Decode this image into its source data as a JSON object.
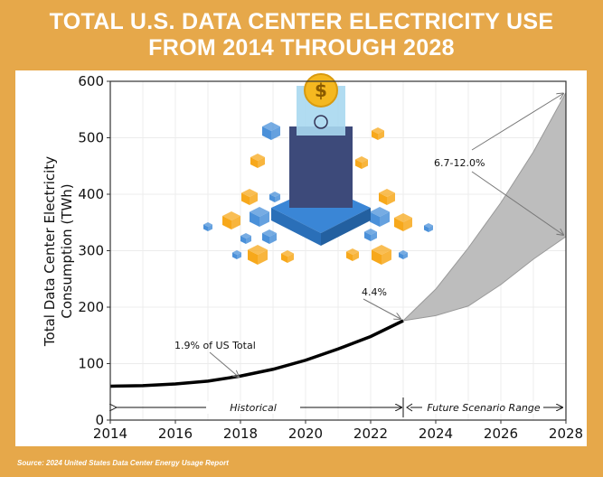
{
  "title_line1": "TOTAL U.S. DATA CENTER ELECTRICITY USE",
  "title_line2": "FROM 2014 THROUGH 2028",
  "source": "Source: 2024 United States Data Center Energy Usage Report",
  "colors": {
    "background": "#e6a84a",
    "line": "#000000",
    "range_fill": "#bdbdbd",
    "range_edge": "#999999"
  },
  "chart_data": {
    "type": "line",
    "title": "Total U.S. Data Center Electricity Use from 2014 through 2028",
    "xlabel": "",
    "ylabel": "Total Data Center Electricity Consumption (TWh)",
    "ylabel_line1": "Total Data Center Electricity",
    "ylabel_line2": "Consumption (TWh)",
    "xlim": [
      2014,
      2028
    ],
    "ylim": [
      0,
      600
    ],
    "xticks": [
      "2014",
      "2016",
      "2018",
      "2020",
      "2022",
      "2024",
      "2026",
      "2028"
    ],
    "yticks": [
      "0",
      "100",
      "200",
      "300",
      "400",
      "500",
      "600"
    ],
    "grid": true,
    "series": [
      {
        "name": "Historical",
        "x": [
          2014,
          2015,
          2016,
          2017,
          2018,
          2019,
          2020,
          2021,
          2022,
          2023
        ],
        "values": [
          60,
          61,
          64,
          69,
          78,
          90,
          106,
          126,
          148,
          176
        ]
      },
      {
        "name": "Future Scenario Upper",
        "x": [
          2023,
          2024,
          2025,
          2026,
          2027,
          2028
        ],
        "values": [
          176,
          232,
          305,
          385,
          475,
          580
        ]
      },
      {
        "name": "Future Scenario Lower",
        "x": [
          2023,
          2024,
          2025,
          2026,
          2027,
          2028
        ],
        "values": [
          176,
          185,
          202,
          240,
          285,
          325
        ]
      }
    ],
    "annotations": [
      {
        "text": "1.9% of US Total",
        "x": 2018,
        "y": 78
      },
      {
        "text": "4.4%",
        "x": 2023,
        "y": 176
      },
      {
        "text": "6.7-12.0%",
        "x": 2028,
        "y": [
          580,
          325
        ]
      }
    ],
    "range_labels": {
      "historical": "Historical",
      "future": "Future Scenario Range"
    }
  }
}
